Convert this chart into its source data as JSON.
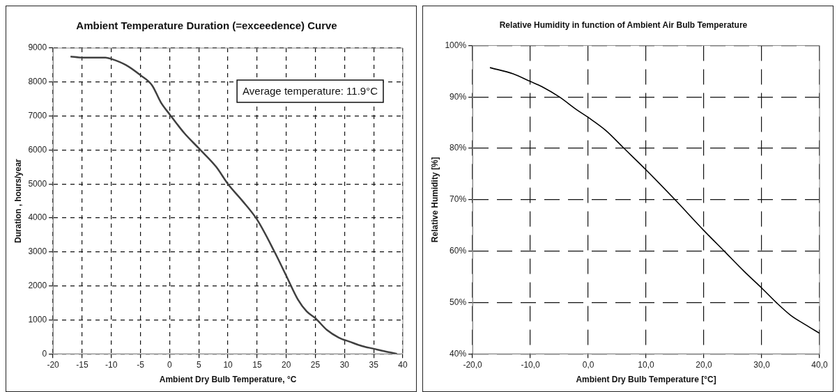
{
  "chart_data": [
    {
      "type": "line",
      "title": "Ambient Temperature Duration (=exceedence) Curve",
      "xlabel": "Ambient Dry Bulb Temperature, °C",
      "ylabel": "Duration , hours/year",
      "annotations": [
        "Average temperature: 11.9°C"
      ],
      "series": [
        {
          "color": "#404040",
          "x": [
            -17,
            -15,
            -11,
            -10,
            -7.5,
            -5,
            -3,
            -1.5,
            0,
            2.5,
            5,
            8,
            10,
            12.5,
            15,
            18,
            20,
            22,
            23.5,
            25,
            27,
            29,
            31,
            33,
            35,
            37,
            39
          ],
          "values": [
            8750,
            8720,
            8720,
            8680,
            8500,
            8200,
            7900,
            7400,
            7050,
            6500,
            6050,
            5500,
            5000,
            4500,
            3950,
            3000,
            2300,
            1600,
            1250,
            1050,
            700,
            480,
            350,
            230,
            150,
            70,
            0
          ]
        }
      ],
      "xlim": [
        -20,
        40
      ],
      "xticks": [
        -20,
        -15,
        -10,
        -5,
        0,
        5,
        10,
        15,
        20,
        25,
        30,
        35,
        40
      ],
      "ylim": [
        0,
        9000
      ],
      "yticks": [
        0,
        1000,
        2000,
        3000,
        4000,
        5000,
        6000,
        7000,
        8000,
        9000
      ],
      "grid": true,
      "legend": false,
      "marker": "none",
      "line_style": "solid"
    },
    {
      "type": "line",
      "title": "Relative Humidity in function of Ambient Air Bulb Temperature",
      "xlabel": "Ambient Dry Bulb Temperature [°C]",
      "ylabel": "Relative Humidity [%]",
      "series": [
        {
          "color": "#000000",
          "x": [
            -17,
            -13,
            -10,
            -8,
            -5,
            -2,
            0,
            3,
            6,
            10,
            15,
            20,
            23.5,
            27,
            30,
            32.5,
            35,
            37.5,
            40
          ],
          "values": [
            95.7,
            94.5,
            93,
            92,
            90,
            87.5,
            86,
            83.5,
            80.2,
            75.8,
            70,
            64,
            60,
            56,
            52.8,
            50,
            47.5,
            45.7,
            44
          ]
        }
      ],
      "xlim": [
        -20,
        40
      ],
      "xticks": [
        {
          "value": -20,
          "label": "-20,0"
        },
        {
          "value": -10,
          "label": "-10,0"
        },
        {
          "value": 0,
          "label": "0,0"
        },
        {
          "value": 10,
          "label": "10,0"
        },
        {
          "value": 20,
          "label": "20,0"
        },
        {
          "value": 30,
          "label": "30,0"
        },
        {
          "value": 40,
          "label": "40,0"
        }
      ],
      "ylim": [
        40,
        100
      ],
      "yticks": [
        {
          "value": 40,
          "label": "40%"
        },
        {
          "value": 50,
          "label": "50%"
        },
        {
          "value": 60,
          "label": "60%"
        },
        {
          "value": 70,
          "label": "70%"
        },
        {
          "value": 80,
          "label": "80%"
        },
        {
          "value": 90,
          "label": "90%"
        },
        {
          "value": 100,
          "label": "100%"
        }
      ],
      "grid": true,
      "legend": false,
      "marker": "none",
      "line_style": "solid"
    }
  ]
}
